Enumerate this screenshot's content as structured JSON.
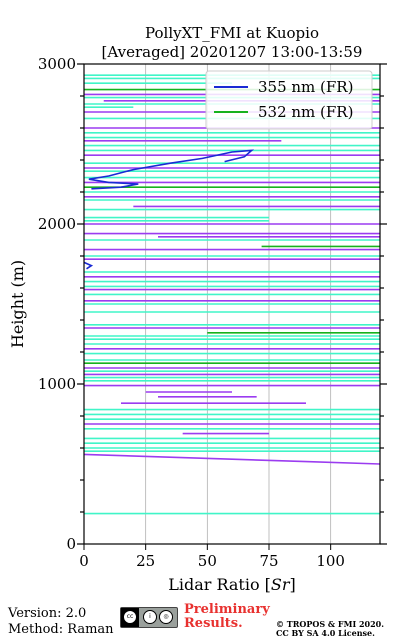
{
  "title_line1": "PollyXT_FMI at Kuopio",
  "title_line2": "[Averaged] 20201207 13:00-13:59",
  "chart_data": {
    "type": "line",
    "xlabel": "Lidar Ratio [Sr]",
    "ylabel": "Height (m)",
    "xlim": [
      0,
      120
    ],
    "ylim": [
      0,
      3000
    ],
    "x_ticks": [
      0,
      25,
      50,
      75,
      100
    ],
    "y_ticks": [
      0,
      1000,
      2000,
      3000
    ],
    "grid": "vertical",
    "legend_position": "top-right",
    "series": [
      {
        "name": "355 nm (FR)",
        "color": "#1a2ad4"
      },
      {
        "name": "532 nm (FR)",
        "color": "#17b21e"
      }
    ],
    "colors": {
      "raw_355": "#9b3cf0",
      "raw_532": "#40f5c8"
    },
    "segments": [
      {
        "h": 2930,
        "x0": 0,
        "x1": 120,
        "c": "raw_532"
      },
      {
        "h": 2910,
        "x0": 0,
        "x1": 120,
        "c": "raw_532"
      },
      {
        "h": 2880,
        "x0": 0,
        "x1": 60,
        "c": "raw_532"
      },
      {
        "h": 2840,
        "x0": 0,
        "x1": 120,
        "c": "532"
      },
      {
        "h": 2810,
        "x0": 0,
        "x1": 120,
        "c": "raw_355"
      },
      {
        "h": 2790,
        "x0": 0,
        "x1": 120,
        "c": "raw_532"
      },
      {
        "h": 2770,
        "x0": 8,
        "x1": 120,
        "c": "raw_355"
      },
      {
        "h": 2750,
        "x0": 0,
        "x1": 120,
        "c": "raw_532"
      },
      {
        "h": 2730,
        "x0": 0,
        "x1": 20,
        "c": "raw_532"
      },
      {
        "h": 2700,
        "x0": 0,
        "x1": 120,
        "c": "raw_355"
      },
      {
        "h": 2660,
        "x0": 0,
        "x1": 120,
        "c": "raw_532"
      },
      {
        "h": 2600,
        "x0": 0,
        "x1": 120,
        "c": "raw_355"
      },
      {
        "h": 2570,
        "x0": 0,
        "x1": 120,
        "c": "raw_532"
      },
      {
        "h": 2540,
        "x0": 0,
        "x1": 120,
        "c": "raw_532"
      },
      {
        "h": 2520,
        "x0": 0,
        "x1": 80,
        "c": "raw_355"
      },
      {
        "h": 2490,
        "x0": 0,
        "x1": 120,
        "c": "raw_532"
      },
      {
        "h": 2460,
        "x0": 0,
        "x1": 120,
        "c": "raw_532"
      },
      {
        "h": 2430,
        "x0": 0,
        "x1": 120,
        "c": "raw_355"
      },
      {
        "h": 2380,
        "x0": 0,
        "x1": 120,
        "c": "raw_532"
      },
      {
        "h": 2350,
        "x0": 0,
        "x1": 120,
        "c": "raw_355"
      },
      {
        "h": 2330,
        "x0": 0,
        "x1": 120,
        "c": "raw_532"
      },
      {
        "h": 2290,
        "x0": 0,
        "x1": 120,
        "c": "raw_532"
      },
      {
        "h": 2260,
        "x0": 0,
        "x1": 120,
        "c": "raw_355"
      },
      {
        "h": 2230,
        "x0": 0,
        "x1": 120,
        "c": "532"
      },
      {
        "h": 2200,
        "x0": 0,
        "x1": 120,
        "c": "raw_532"
      },
      {
        "h": 2170,
        "x0": 0,
        "x1": 120,
        "c": "raw_355"
      },
      {
        "h": 2150,
        "x0": 0,
        "x1": 120,
        "c": "raw_532"
      },
      {
        "h": 2110,
        "x0": 20,
        "x1": 120,
        "c": "raw_355"
      },
      {
        "h": 2090,
        "x0": 0,
        "x1": 120,
        "c": "raw_532"
      },
      {
        "h": 2040,
        "x0": 0,
        "x1": 75,
        "c": "raw_532"
      },
      {
        "h": 2020,
        "x0": 0,
        "x1": 75,
        "c": "raw_532"
      },
      {
        "h": 2000,
        "x0": 0,
        "x1": 120,
        "c": "raw_355"
      },
      {
        "h": 1940,
        "x0": 0,
        "x1": 120,
        "c": "raw_355"
      },
      {
        "h": 1920,
        "x0": 30,
        "x1": 120,
        "c": "raw_355"
      },
      {
        "h": 1900,
        "x0": 0,
        "x1": 120,
        "c": "raw_532"
      },
      {
        "h": 1860,
        "x0": 72,
        "x1": 120,
        "c": "532"
      },
      {
        "h": 1840,
        "x0": 0,
        "x1": 120,
        "c": "raw_355"
      },
      {
        "h": 1800,
        "x0": 0,
        "x1": 120,
        "c": "raw_532"
      },
      {
        "h": 1780,
        "x0": 0,
        "x1": 120,
        "c": "raw_355"
      },
      {
        "h": 1700,
        "x0": 0,
        "x1": 120,
        "c": "raw_532"
      },
      {
        "h": 1670,
        "x0": 0,
        "x1": 120,
        "c": "raw_355"
      },
      {
        "h": 1640,
        "x0": 0,
        "x1": 120,
        "c": "raw_532"
      },
      {
        "h": 1610,
        "x0": 0,
        "x1": 120,
        "c": "raw_532"
      },
      {
        "h": 1590,
        "x0": 0,
        "x1": 120,
        "c": "raw_355"
      },
      {
        "h": 1560,
        "x0": 0,
        "x1": 120,
        "c": "raw_532"
      },
      {
        "h": 1520,
        "x0": 0,
        "x1": 120,
        "c": "raw_355"
      },
      {
        "h": 1500,
        "x0": 0,
        "x1": 120,
        "c": "raw_532"
      },
      {
        "h": 1450,
        "x0": 0,
        "x1": 120,
        "c": "raw_532"
      },
      {
        "h": 1370,
        "x0": 0,
        "x1": 120,
        "c": "raw_532"
      },
      {
        "h": 1350,
        "x0": 0,
        "x1": 120,
        "c": "raw_355"
      },
      {
        "h": 1320,
        "x0": 50,
        "x1": 120,
        "c": "532"
      },
      {
        "h": 1300,
        "x0": 0,
        "x1": 120,
        "c": "raw_532"
      },
      {
        "h": 1280,
        "x0": 0,
        "x1": 120,
        "c": "raw_532"
      },
      {
        "h": 1250,
        "x0": 0,
        "x1": 120,
        "c": "raw_532"
      },
      {
        "h": 1220,
        "x0": 0,
        "x1": 120,
        "c": "raw_355"
      },
      {
        "h": 1190,
        "x0": 0,
        "x1": 120,
        "c": "raw_532"
      },
      {
        "h": 1150,
        "x0": 0,
        "x1": 120,
        "c": "raw_532"
      },
      {
        "h": 1130,
        "x0": 0,
        "x1": 120,
        "c": "532"
      },
      {
        "h": 1100,
        "x0": 0,
        "x1": 120,
        "c": "raw_355"
      },
      {
        "h": 1080,
        "x0": 0,
        "x1": 120,
        "c": "raw_532"
      },
      {
        "h": 1060,
        "x0": 0,
        "x1": 120,
        "c": "raw_355"
      },
      {
        "h": 1040,
        "x0": 0,
        "x1": 120,
        "c": "raw_532"
      },
      {
        "h": 1020,
        "x0": 0,
        "x1": 120,
        "c": "raw_532"
      },
      {
        "h": 990,
        "x0": 0,
        "x1": 120,
        "c": "raw_355"
      },
      {
        "h": 950,
        "x0": 25,
        "x1": 60,
        "c": "raw_355"
      },
      {
        "h": 920,
        "x0": 30,
        "x1": 70,
        "c": "raw_355"
      },
      {
        "h": 880,
        "x0": 15,
        "x1": 90,
        "c": "raw_355"
      },
      {
        "h": 840,
        "x0": 0,
        "x1": 120,
        "c": "raw_532"
      },
      {
        "h": 810,
        "x0": 0,
        "x1": 120,
        "c": "raw_532"
      },
      {
        "h": 780,
        "x0": 0,
        "x1": 120,
        "c": "raw_532"
      },
      {
        "h": 750,
        "x0": 0,
        "x1": 120,
        "c": "raw_355"
      },
      {
        "h": 720,
        "x0": 0,
        "x1": 120,
        "c": "raw_532"
      },
      {
        "h": 690,
        "x0": 40,
        "x1": 75,
        "c": "raw_355"
      },
      {
        "h": 660,
        "x0": 0,
        "x1": 120,
        "c": "raw_532"
      },
      {
        "h": 630,
        "x0": 0,
        "x1": 120,
        "c": "raw_532"
      },
      {
        "h": 600,
        "x0": 0,
        "x1": 120,
        "c": "raw_532"
      },
      {
        "h": 580,
        "x0": 0,
        "x1": 120,
        "c": "raw_532"
      },
      {
        "h": 190,
        "x0": 0,
        "x1": 120,
        "c": "raw_532"
      }
    ],
    "profiles": [
      {
        "c": "355",
        "points": [
          [
            57,
            2390
          ],
          [
            65,
            2420
          ],
          [
            68,
            2460
          ],
          [
            60,
            2450
          ],
          [
            48,
            2410
          ],
          [
            35,
            2380
          ],
          [
            20,
            2340
          ],
          [
            10,
            2300
          ],
          [
            2,
            2280
          ],
          [
            10,
            2260
          ],
          [
            22,
            2250
          ],
          [
            15,
            2230
          ],
          [
            3,
            2220
          ]
        ]
      },
      {
        "c": "355",
        "points": [
          [
            0,
            1760
          ],
          [
            3,
            1740
          ],
          [
            1,
            1720
          ]
        ]
      },
      {
        "c": "raw_355",
        "points": [
          [
            0,
            560
          ],
          [
            30,
            545
          ],
          [
            60,
            530
          ],
          [
            90,
            515
          ],
          [
            120,
            500
          ]
        ]
      }
    ]
  },
  "footer": {
    "version": "Version: 2.0",
    "method": "Method: Raman",
    "preliminary_line1": "Preliminary",
    "preliminary_line2": "Results.",
    "copyright_line1": "© TROPOS & FMI 2020.",
    "copyright_line2": "CC BY SA 4.0 License."
  }
}
